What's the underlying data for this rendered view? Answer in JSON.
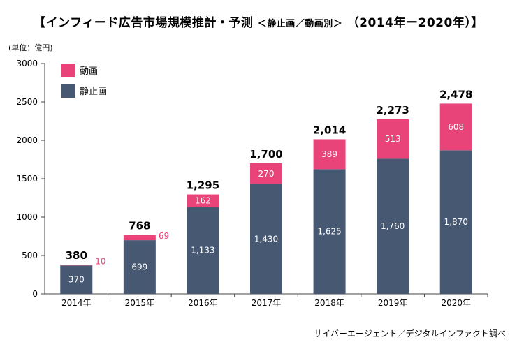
{
  "title": "【インフィード広告市場規模推計・予測",
  "title_sub": "＜静止画／動画別＞",
  "title_tail": "（2014年ー2020年）】",
  "unit": "(単位：億円)",
  "source": "サイバーエージェント／デジタルインファクト調べ",
  "colors": {
    "video": "#e8447a",
    "still": "#475873",
    "axis": "#444444"
  },
  "chart_data": {
    "type": "bar",
    "stacked": true,
    "categories": [
      "2014年",
      "2015年",
      "2016年",
      "2017年",
      "2018年",
      "2019年",
      "2020年"
    ],
    "series": [
      {
        "name": "静止画",
        "values": [
          370,
          699,
          1133,
          1430,
          1625,
          1760,
          1870
        ],
        "labels": [
          "370",
          "699",
          "1,133",
          "1,430",
          "1,625",
          "1,760",
          "1,870"
        ]
      },
      {
        "name": "動画",
        "values": [
          10,
          69,
          162,
          270,
          389,
          513,
          608
        ],
        "labels": [
          "10",
          "69",
          "162",
          "270",
          "389",
          "513",
          "608"
        ]
      }
    ],
    "totals": [
      "380",
      "768",
      "1,295",
      "1,700",
      "2,014",
      "2,273",
      "2,478"
    ],
    "ylim": [
      0,
      3000
    ],
    "yticks": [
      0,
      500,
      1000,
      1500,
      2000,
      2500,
      3000
    ],
    "legend_position": "top-left",
    "grid": false
  }
}
